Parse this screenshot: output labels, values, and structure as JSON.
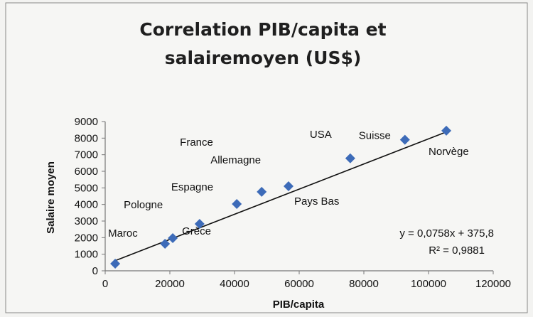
{
  "chart_data": {
    "type": "scatter",
    "title_lines": [
      "Correlation PIB/capita et",
      "salairemoyen (US$)"
    ],
    "xlabel": "PIB/capita",
    "ylabel": "Salaire moyen",
    "xlim": [
      0,
      120000
    ],
    "ylim": [
      0,
      9000
    ],
    "xticks": [
      "0",
      "20000",
      "40000",
      "60000",
      "80000",
      "100000",
      "120000"
    ],
    "yticks": [
      "0",
      "1000",
      "2000",
      "3000",
      "4000",
      "5000",
      "6000",
      "7000",
      "8000",
      "9000"
    ],
    "grid": false,
    "marker_color": "#3d6bb8",
    "points": [
      {
        "label": "Maroc",
        "x": 3100,
        "y": 430
      },
      {
        "label": "Pologne",
        "x": 18500,
        "y": 1630
      },
      {
        "label": "Grèce",
        "x": 20900,
        "y": 1970
      },
      {
        "label": "Espagne",
        "x": 29200,
        "y": 2830
      },
      {
        "label": "France",
        "x": 40700,
        "y": 4030
      },
      {
        "label": "Allemagne",
        "x": 48400,
        "y": 4760
      },
      {
        "label": "Pays Bas",
        "x": 56700,
        "y": 5100
      },
      {
        "label": "USA",
        "x": 75800,
        "y": 6780
      },
      {
        "label": "Suisse",
        "x": 92700,
        "y": 7900
      },
      {
        "label": "Norvège",
        "x": 105500,
        "y": 8450
      }
    ],
    "trendline": {
      "type": "linear",
      "slope": 0.0758,
      "intercept": 375.8,
      "x_range": [
        3100,
        105500
      ]
    },
    "equation_text": "y = 0,0758x + 375,8",
    "r2_text": "R² = 0,9881"
  }
}
